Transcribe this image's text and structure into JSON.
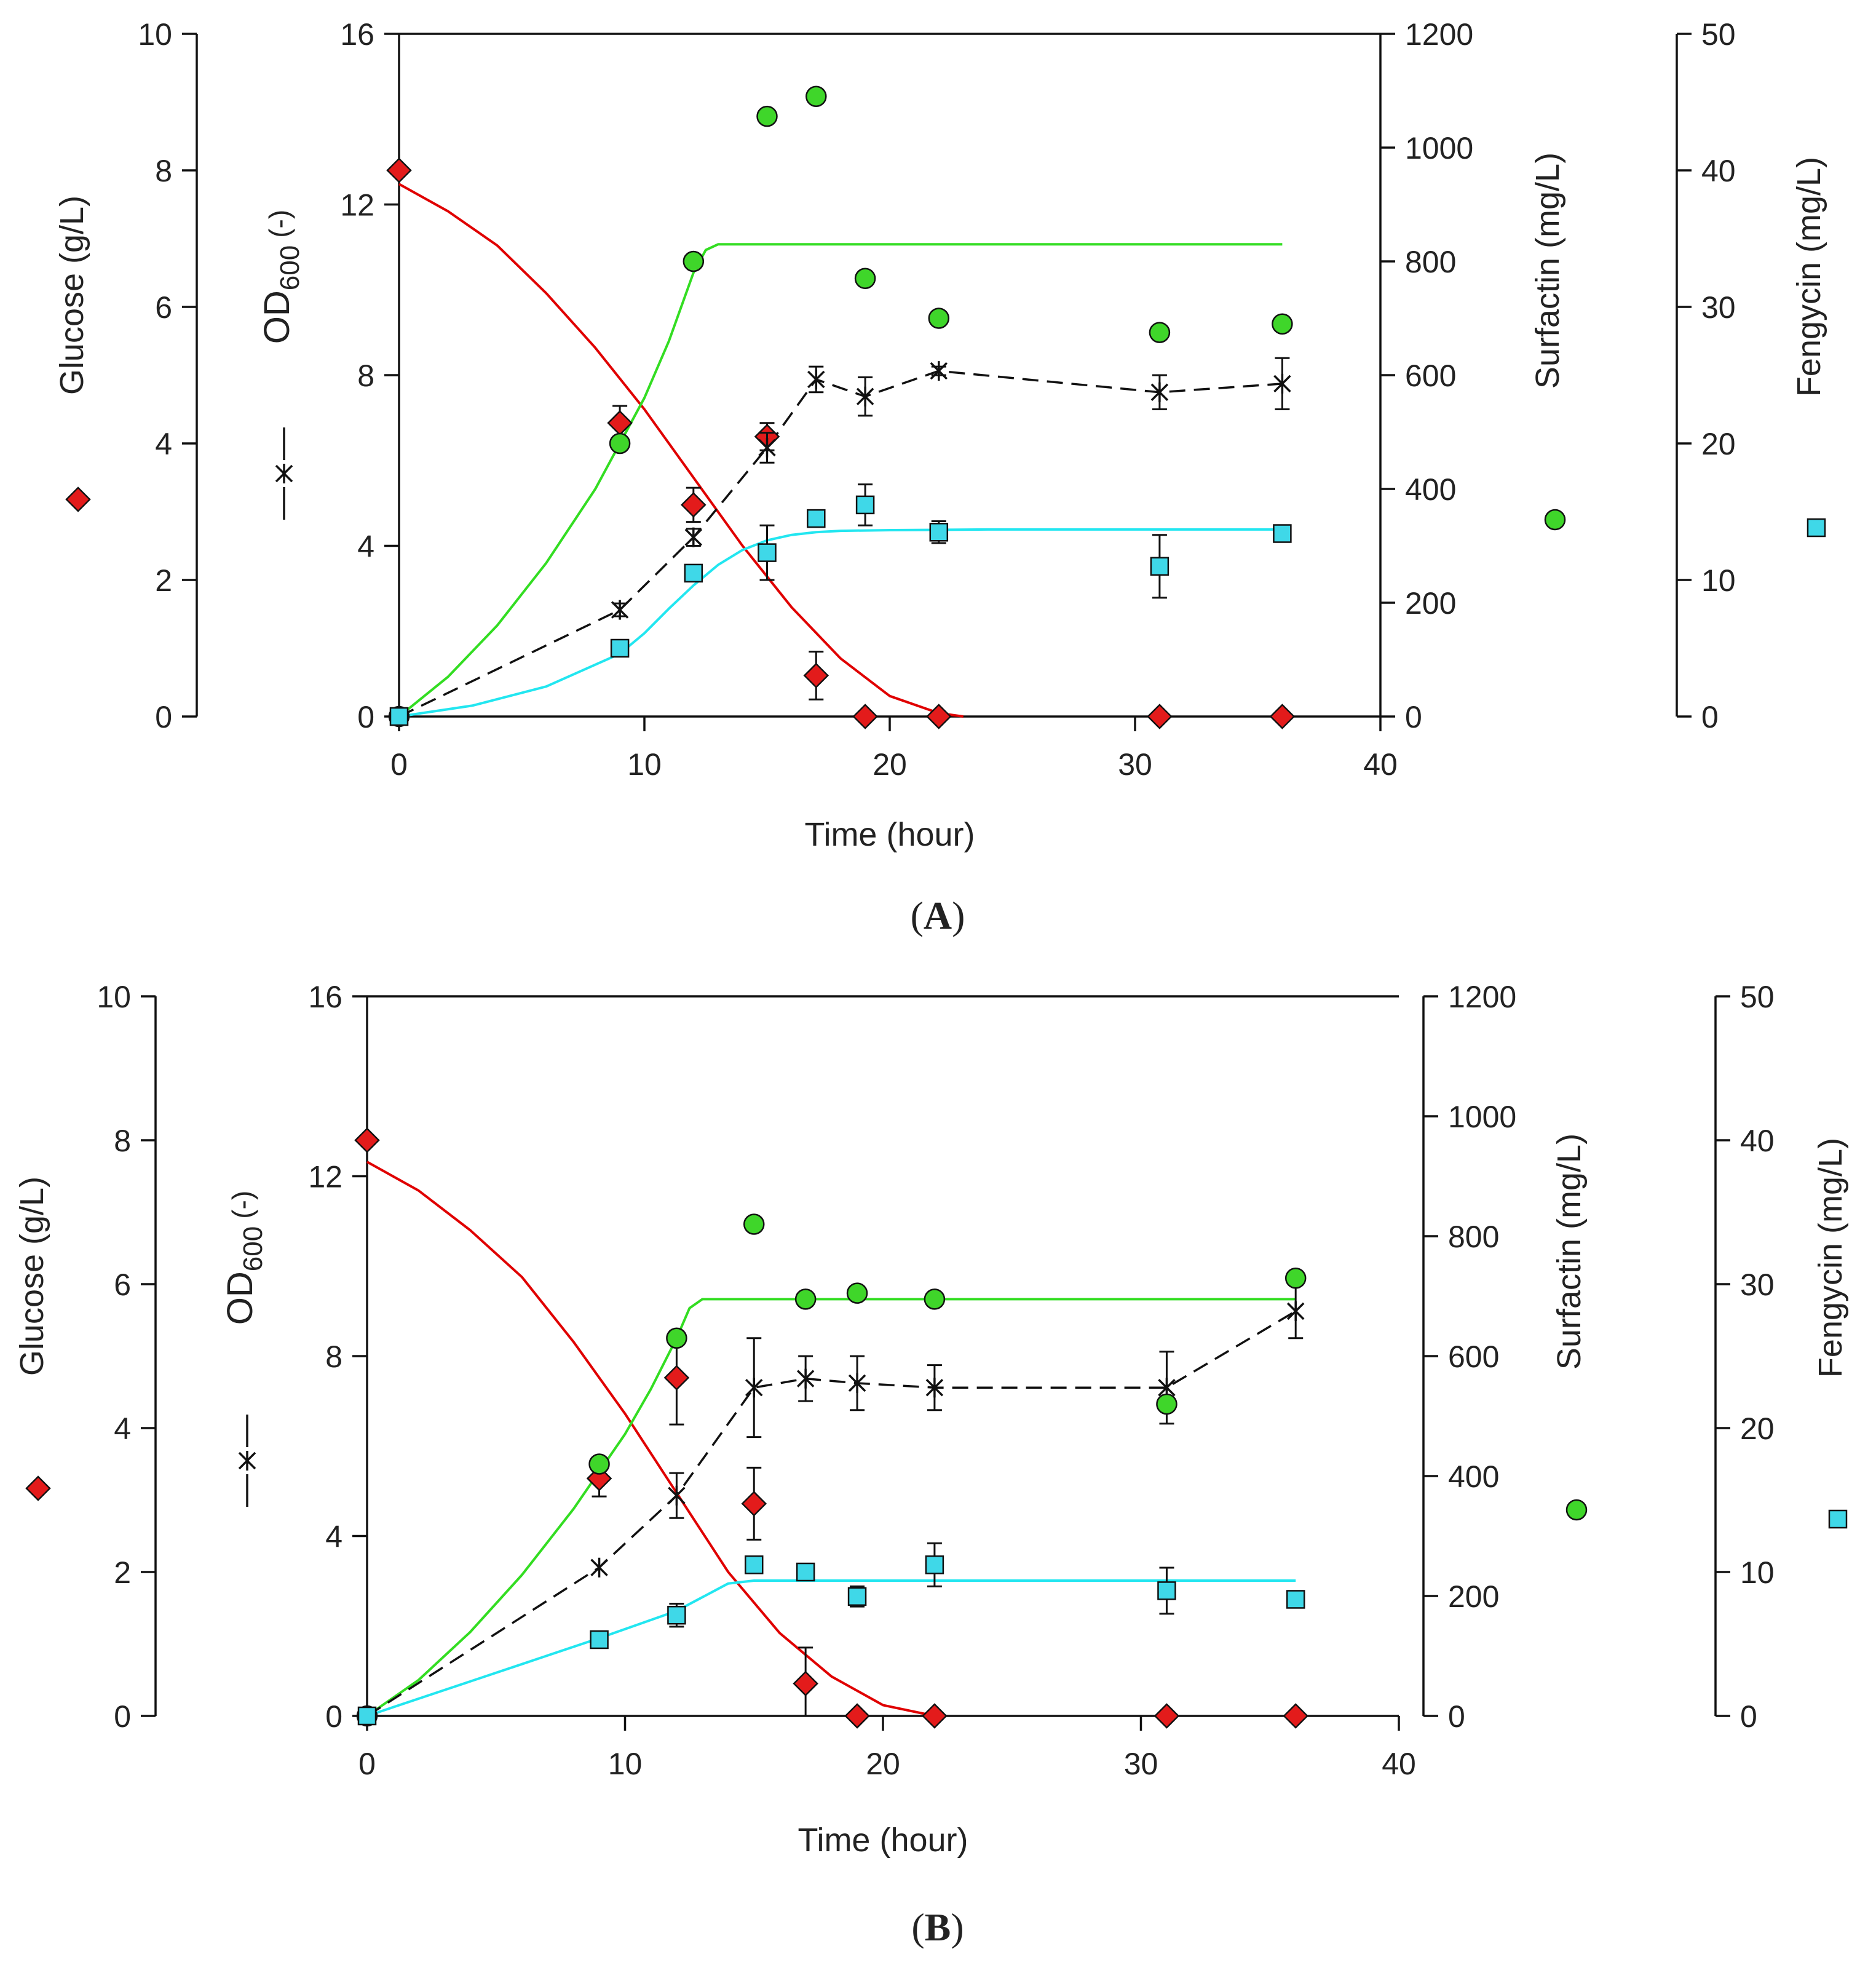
{
  "figure": {
    "panels": [
      "A",
      "B"
    ]
  },
  "colors": {
    "glucose": "#e00000",
    "glucose_fill": "#e31b1b",
    "surfactin": "#33dd22",
    "surfactin_fill": "#3fd62a",
    "fengycin": "#22e6f0",
    "fengycin_fill": "#3fd8e8",
    "od600": "#111111",
    "axis": "#111111"
  },
  "chart_data": [
    {
      "panel": "A",
      "panel_label": "A",
      "type": "line",
      "xlabel": "Time (hour)",
      "xlim": [
        0,
        40
      ],
      "xticks": [
        "0",
        "10",
        "20",
        "30",
        "40"
      ],
      "axes": {
        "glucose": {
          "label": "Glucose (g/L)",
          "ylim": [
            0,
            10
          ],
          "ticks": [
            "0",
            "2",
            "4",
            "6",
            "8",
            "10"
          ],
          "legend": "diamond"
        },
        "od600": {
          "label": "OD",
          "label_sub": "600",
          "label_suffix": "(-)",
          "ylim": [
            0,
            16
          ],
          "ticks": [
            "0",
            "4",
            "8",
            "12",
            "16"
          ],
          "legend": "dashed-star"
        },
        "surfactin": {
          "label": "Surfactin (mg/L)",
          "ylim": [
            0,
            1200
          ],
          "ticks": [
            "0",
            "200",
            "400",
            "600",
            "800",
            "1000",
            "1200"
          ],
          "legend": "circle"
        },
        "fengycin": {
          "label": "Fengycin  (mg/L)",
          "ylim": [
            0,
            50
          ],
          "ticks": [
            "0",
            "10",
            "20",
            "30",
            "40",
            "50"
          ],
          "legend": "square"
        }
      },
      "series": [
        {
          "name": "Glucose",
          "axis": "glucose",
          "marker": "diamond",
          "x": [
            0,
            9,
            12,
            15,
            17,
            19,
            22,
            31,
            36
          ],
          "y": [
            8.0,
            4.3,
            3.1,
            4.1,
            0.6,
            0.0,
            0.0,
            0.0,
            0.0
          ],
          "err": [
            0,
            0.25,
            0.25,
            0.2,
            0.35,
            0,
            0,
            0,
            0
          ]
        },
        {
          "name": "OD600",
          "axis": "od600",
          "marker": "star",
          "line": "dashed",
          "x": [
            0,
            9,
            12,
            15,
            17,
            19,
            22,
            31,
            36
          ],
          "y": [
            0.0,
            2.5,
            4.2,
            6.3,
            7.9,
            7.5,
            8.1,
            7.6,
            7.8
          ],
          "err": [
            0,
            0.15,
            0.2,
            0.35,
            0.3,
            0.45,
            0.1,
            0.4,
            0.6
          ]
        },
        {
          "name": "Surfactin",
          "axis": "surfactin",
          "marker": "circle",
          "x": [
            0,
            9,
            12,
            15,
            17,
            19,
            22,
            31,
            36
          ],
          "y": [
            0,
            480,
            800,
            1055,
            1090,
            770,
            700,
            675,
            690
          ]
        },
        {
          "name": "Fengycin",
          "axis": "fengycin",
          "marker": "square",
          "x": [
            0,
            9,
            12,
            15,
            17,
            19,
            22,
            31,
            36
          ],
          "y": [
            0,
            5,
            10.5,
            12,
            14.5,
            15.5,
            13.5,
            11,
            13.4
          ],
          "err": [
            0,
            0.6,
            0,
            2,
            0,
            1.5,
            0.8,
            2.3,
            0.5
          ]
        }
      ],
      "fits": [
        {
          "name": "Glucose fit",
          "axis": "glucose",
          "x": [
            0,
            2,
            4,
            6,
            8,
            10,
            12,
            14,
            16,
            18,
            20,
            22,
            23
          ],
          "y": [
            7.8,
            7.4,
            6.9,
            6.2,
            5.4,
            4.5,
            3.5,
            2.5,
            1.6,
            0.85,
            0.3,
            0.05,
            0.0
          ]
        },
        {
          "name": "Surfactin fit",
          "axis": "surfactin",
          "x": [
            0,
            2,
            4,
            6,
            8,
            10,
            11,
            12,
            12.5,
            13,
            36
          ],
          "y": [
            0,
            70,
            160,
            270,
            400,
            560,
            660,
            780,
            820,
            830,
            830
          ]
        },
        {
          "name": "Fengycin fit",
          "axis": "fengycin",
          "x": [
            0,
            3,
            6,
            9,
            10,
            11,
            12,
            13,
            14,
            15,
            16,
            17,
            18,
            20,
            24,
            36
          ],
          "y": [
            0,
            0.8,
            2.2,
            4.6,
            6.1,
            7.9,
            9.6,
            11.1,
            12.2,
            12.9,
            13.3,
            13.5,
            13.6,
            13.65,
            13.7,
            13.7
          ]
        }
      ]
    },
    {
      "panel": "B",
      "panel_label": "B",
      "type": "line",
      "xlabel": "Time (hour)",
      "xlim": [
        0,
        40
      ],
      "xticks": [
        "0",
        "10",
        "20",
        "30",
        "40"
      ],
      "axes": {
        "glucose": {
          "label": "Glucose (g/L)",
          "ylim": [
            0,
            10
          ],
          "ticks": [
            "0",
            "2",
            "4",
            "6",
            "8",
            "10"
          ],
          "legend": "diamond"
        },
        "od600": {
          "label": "OD",
          "label_sub": "600",
          "label_suffix": "(-)",
          "ylim": [
            0,
            16
          ],
          "ticks": [
            "0",
            "4",
            "8",
            "12",
            "16"
          ],
          "legend": "dashed-star"
        },
        "surfactin": {
          "label": "Surfactin (mg/L)",
          "ylim": [
            0,
            1200
          ],
          "ticks": [
            "0",
            "200",
            "400",
            "600",
            "800",
            "1000",
            "1200"
          ],
          "legend": "circle"
        },
        "fengycin": {
          "label": "Fengycin  (mg/L)",
          "ylim": [
            0,
            50
          ],
          "ticks": [
            "0",
            "10",
            "20",
            "30",
            "40",
            "50"
          ],
          "legend": "square"
        }
      },
      "series": [
        {
          "name": "Glucose",
          "axis": "glucose",
          "marker": "diamond",
          "x": [
            0,
            9,
            12,
            15,
            17,
            19,
            22,
            31,
            36
          ],
          "y": [
            8.0,
            3.3,
            4.7,
            2.95,
            0.45,
            0.0,
            0.0,
            0.0,
            0.0
          ],
          "err": [
            0,
            0.25,
            0.65,
            0.5,
            0.5,
            0,
            0,
            0,
            0
          ]
        },
        {
          "name": "OD600",
          "axis": "od600",
          "marker": "star",
          "line": "dashed",
          "x": [
            0,
            9,
            12,
            15,
            17,
            19,
            22,
            31,
            36
          ],
          "y": [
            0.0,
            3.3,
            4.9,
            7.3,
            7.5,
            7.4,
            7.3,
            7.3,
            9.0
          ],
          "err": [
            0,
            0,
            0.5,
            1.1,
            0.5,
            0.6,
            0.5,
            0.8,
            0.6
          ]
        },
        {
          "name": "Surfactin",
          "axis": "surfactin",
          "marker": "circle",
          "x": [
            0,
            9,
            12,
            15,
            17,
            19,
            22,
            31,
            36
          ],
          "y": [
            0,
            420,
            630,
            820,
            695,
            705,
            695,
            520,
            730
          ]
        },
        {
          "name": "Fengycin",
          "axis": "fengycin",
          "marker": "square",
          "x": [
            0,
            9,
            12,
            15,
            17,
            19,
            22,
            31,
            36
          ],
          "y": [
            0,
            5.3,
            7,
            10.5,
            10,
            8.3,
            10.5,
            8.7,
            8.1
          ],
          "err": [
            0,
            0,
            0.8,
            0.5,
            0,
            0.7,
            1.5,
            1.6,
            0.3
          ]
        }
      ],
      "fits": [
        {
          "name": "Glucose fit",
          "axis": "glucose",
          "x": [
            0,
            2,
            4,
            6,
            8,
            10,
            12,
            14,
            16,
            18,
            20,
            22
          ],
          "y": [
            7.7,
            7.3,
            6.75,
            6.1,
            5.2,
            4.2,
            3.1,
            2.0,
            1.15,
            0.55,
            0.15,
            0.0
          ]
        },
        {
          "name": "Surfactin fit",
          "axis": "surfactin",
          "x": [
            0,
            2,
            4,
            6,
            8,
            10,
            11,
            12,
            12.5,
            13,
            36
          ],
          "y": [
            0,
            60,
            140,
            235,
            345,
            470,
            545,
            630,
            680,
            695,
            695
          ]
        },
        {
          "name": "Fengycin fit",
          "axis": "fengycin",
          "x": [
            0,
            3,
            6,
            9,
            12,
            14,
            15,
            36
          ],
          "y": [
            0,
            1.8,
            3.6,
            5.4,
            7.3,
            9.2,
            9.4,
            9.4
          ]
        }
      ]
    }
  ]
}
